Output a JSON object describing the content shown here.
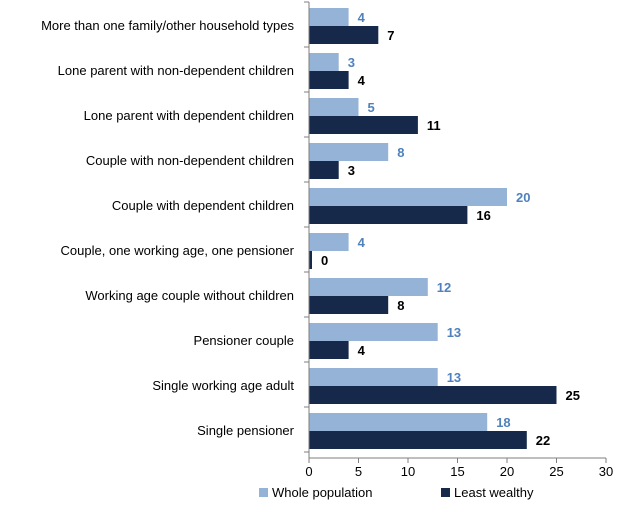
{
  "chart_data": {
    "type": "bar",
    "orientation": "horizontal",
    "categories": [
      "More than one family/other household types",
      "Lone parent with non-dependent children",
      "Lone parent with dependent children",
      "Couple with non-dependent children",
      "Couple with dependent children",
      "Couple, one working age, one pensioner",
      "Working age couple without children",
      "Pensioner couple",
      "Single working age adult",
      "Single pensioner"
    ],
    "series": [
      {
        "name": "Whole population",
        "color": "#95b3d7",
        "label_color": "#4f81bd",
        "values": [
          4,
          3,
          5,
          8,
          20,
          4,
          12,
          13,
          13,
          18
        ]
      },
      {
        "name": "Least wealthy",
        "color": "#17294a",
        "label_color": "#000000",
        "values": [
          7,
          4,
          11,
          3,
          16,
          0,
          8,
          4,
          25,
          22
        ]
      }
    ],
    "xlim": [
      0,
      30
    ],
    "xticks": [
      0,
      5,
      10,
      15,
      20,
      25,
      30
    ],
    "grid": false,
    "legend_position": "bottom"
  }
}
